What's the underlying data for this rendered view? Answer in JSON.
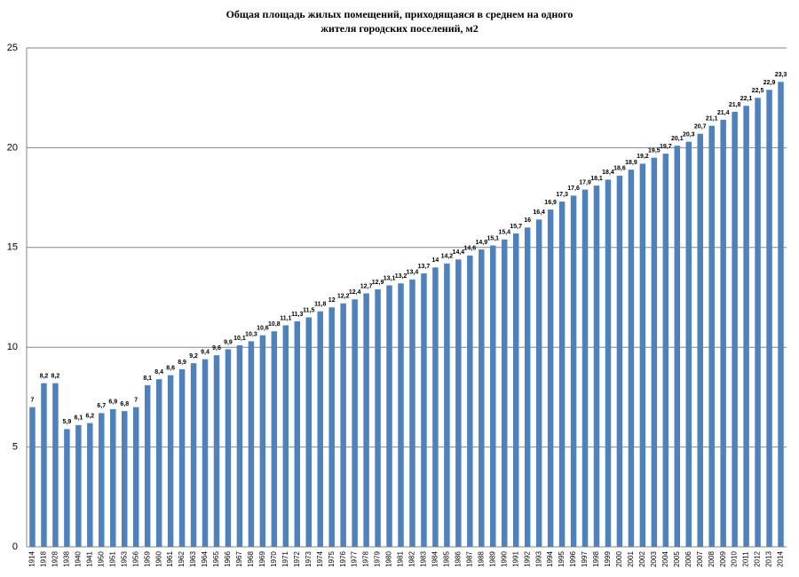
{
  "chart_data": {
    "type": "bar",
    "title": [
      "Общая площадь жилых помещений, приходящаяся в среднем на одного",
      "жителя городских поселений, м2"
    ],
    "categories": [
      "1914",
      "1918",
      "1928",
      "1938",
      "1940",
      "1941",
      "1950",
      "1951",
      "1953",
      "1956",
      "1959",
      "1960",
      "1961",
      "1962",
      "1963",
      "1964",
      "1965",
      "1966",
      "1967",
      "1968",
      "1969",
      "1970",
      "1971",
      "1972",
      "1973",
      "1974",
      "1975",
      "1976",
      "1977",
      "1978",
      "1979",
      "1980",
      "1981",
      "1982",
      "1983",
      "1984",
      "1985",
      "1986",
      "1987",
      "1988",
      "1989",
      "1990",
      "1991",
      "1992",
      "1993",
      "1994",
      "1995",
      "1996",
      "1997",
      "1998",
      "1999",
      "2000",
      "2001",
      "2002",
      "2003",
      "2004",
      "2005",
      "2006",
      "2007",
      "2008",
      "2009",
      "2010",
      "2011",
      "2012",
      "2013",
      "2014"
    ],
    "values": [
      7,
      8.2,
      8.2,
      5.9,
      6.1,
      6.2,
      6.7,
      6.9,
      6.8,
      7,
      8.1,
      8.4,
      8.6,
      8.9,
      9.2,
      9.4,
      9.6,
      9.9,
      10.1,
      10.3,
      10.6,
      10.8,
      11.1,
      11.3,
      11.5,
      11.8,
      12,
      12.2,
      12.4,
      12.7,
      12.9,
      13.1,
      13.2,
      13.4,
      13.7,
      14,
      14.2,
      14.4,
      14.6,
      14.9,
      15.1,
      15.4,
      15.7,
      16,
      16.4,
      16.9,
      17.3,
      17.6,
      17.9,
      18.1,
      18.4,
      18.6,
      18.9,
      19.2,
      19.5,
      19.7,
      20.1,
      20.3,
      20.7,
      21.1,
      21.4,
      21.8,
      22.1,
      22.5,
      22.9,
      23.3
    ],
    "value_labels": [
      "7",
      "8,2",
      "8,2",
      "5,9",
      "6,1",
      "6,2",
      "6,7",
      "6,9",
      "6,8",
      "7",
      "8,1",
      "8,4",
      "8,6",
      "8,9",
      "9,2",
      "9,4",
      "9,6",
      "9,9",
      "10,1",
      "10,3",
      "10,6",
      "10,8",
      "11,1",
      "11,3",
      "11,5",
      "11,8",
      "12",
      "12,2",
      "12,4",
      "12,7",
      "12,9",
      "13,1",
      "13,2",
      "13,4",
      "13,7",
      "14",
      "14,2",
      "14,4",
      "14,6",
      "14,9",
      "15,1",
      "15,4",
      "15,7",
      "16",
      "16,4",
      "16,9",
      "17,3",
      "17,6",
      "17,9",
      "18,1",
      "18,4",
      "18,6",
      "18,9",
      "19,2",
      "19,5",
      "19,7",
      "20,1",
      "20,3",
      "20,7",
      "21,1",
      "21,4",
      "21,8",
      "22,1",
      "22,5",
      "22,9",
      "23,3"
    ],
    "color": "#4f81bd",
    "ylim": [
      0,
      25
    ],
    "yticks": [
      0,
      5,
      10,
      15,
      20,
      25
    ],
    "grid": true
  }
}
